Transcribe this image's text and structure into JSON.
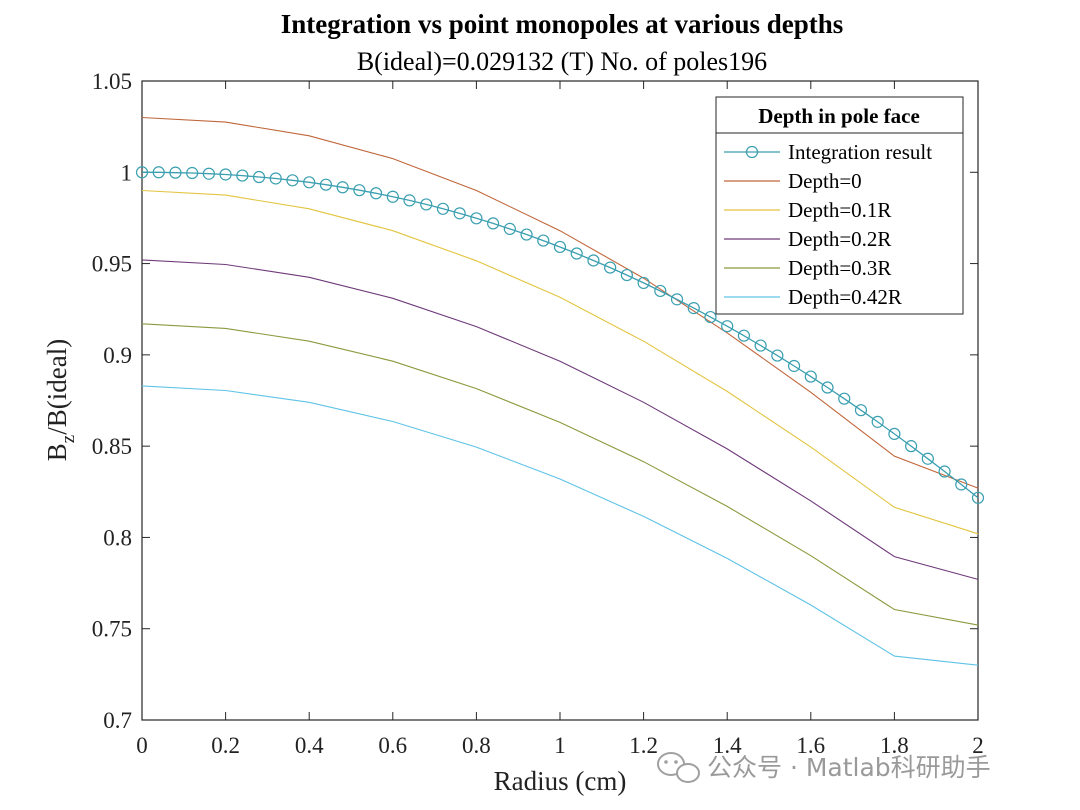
{
  "chart_data": {
    "type": "line",
    "title": "Integration vs point monopoles at various depths",
    "subtitle": "B(ideal)=0.029132 (T) No. of poles196",
    "xlabel": "Radius (cm)",
    "ylabel_main": "B",
    "ylabel_sub": "z",
    "ylabel_rest": "/B(ideal)",
    "xlim": [
      0,
      2
    ],
    "ylim": [
      0.7,
      1.05
    ],
    "xticks": [
      "0",
      "0.2",
      "0.4",
      "0.6",
      "0.8",
      "1",
      "1.2",
      "1.4",
      "1.6",
      "1.8",
      "2"
    ],
    "yticks": [
      "0.7",
      "0.75",
      "0.8",
      "0.85",
      "0.9",
      "0.95",
      "1",
      "1.05"
    ],
    "grid": false,
    "legend_title": "Depth in pole face",
    "legend_position": "top-right",
    "series": [
      {
        "name": "Integration result",
        "color": "#3a9fb0",
        "marker": "circle",
        "x": [
          0.0,
          0.04,
          0.08,
          0.12,
          0.16,
          0.2,
          0.24,
          0.28,
          0.32,
          0.36,
          0.4,
          0.44,
          0.48,
          0.52,
          0.56,
          0.6,
          0.64,
          0.68,
          0.72,
          0.76,
          0.8,
          0.84,
          0.88,
          0.92,
          0.96,
          1.0,
          1.04,
          1.08,
          1.12,
          1.16,
          1.2,
          1.24,
          1.28,
          1.32,
          1.36,
          1.4,
          1.44,
          1.48,
          1.52,
          1.56,
          1.6,
          1.64,
          1.68,
          1.72,
          1.76,
          1.8,
          1.84,
          1.88,
          1.92,
          1.96,
          2.0
        ],
        "y": [
          1.0,
          1.0,
          0.9998,
          0.9996,
          0.9992,
          0.9988,
          0.9982,
          0.9974,
          0.9966,
          0.9956,
          0.9945,
          0.9932,
          0.9918,
          0.9902,
          0.9885,
          0.9866,
          0.9846,
          0.9824,
          0.98,
          0.9775,
          0.9748,
          0.972,
          0.969,
          0.9659,
          0.9626,
          0.9591,
          0.9555,
          0.9517,
          0.9478,
          0.9437,
          0.9394,
          0.935,
          0.9304,
          0.9256,
          0.9207,
          0.9157,
          0.9105,
          0.9051,
          0.8996,
          0.8939,
          0.8881,
          0.8821,
          0.876,
          0.8697,
          0.8633,
          0.8567,
          0.85,
          0.8431,
          0.8361,
          0.829,
          0.8217
        ]
      },
      {
        "name": "Depth=0",
        "color": "#c0663a",
        "x": [
          0.0,
          0.2,
          0.4,
          0.6,
          0.8,
          1.0,
          1.2,
          1.4,
          1.6,
          1.8,
          2.0
        ],
        "y": [
          1.03,
          1.0275,
          1.02,
          1.0075,
          0.99,
          0.968,
          0.942,
          0.912,
          0.8795,
          0.8445,
          0.827
        ]
      },
      {
        "name": "Depth=0.1R",
        "color": "#e3c441",
        "x": [
          0.0,
          0.2,
          0.4,
          0.6,
          0.8,
          1.0,
          1.2,
          1.4,
          1.6,
          1.8,
          2.0
        ],
        "y": [
          0.99,
          0.9875,
          0.98,
          0.968,
          0.9515,
          0.9315,
          0.9075,
          0.88,
          0.8495,
          0.8165,
          0.802
        ]
      },
      {
        "name": "Depth=0.2R",
        "color": "#6f3a7a",
        "x": [
          0.0,
          0.2,
          0.4,
          0.6,
          0.8,
          1.0,
          1.2,
          1.4,
          1.6,
          1.8,
          2.0
        ],
        "y": [
          0.952,
          0.9495,
          0.9425,
          0.931,
          0.9155,
          0.8965,
          0.874,
          0.8485,
          0.82,
          0.7895,
          0.777
        ]
      },
      {
        "name": "Depth=0.3R",
        "color": "#8a9a3e",
        "x": [
          0.0,
          0.2,
          0.4,
          0.6,
          0.8,
          1.0,
          1.2,
          1.4,
          1.6,
          1.8,
          2.0
        ],
        "y": [
          0.917,
          0.9145,
          0.9075,
          0.8965,
          0.8815,
          0.863,
          0.8415,
          0.817,
          0.79,
          0.7605,
          0.752
        ]
      },
      {
        "name": "Depth=0.42R",
        "color": "#5fc3e6",
        "x": [
          0.0,
          0.2,
          0.4,
          0.6,
          0.8,
          1.0,
          1.2,
          1.4,
          1.6,
          1.8,
          2.0
        ],
        "y": [
          0.883,
          0.8805,
          0.874,
          0.8635,
          0.8495,
          0.832,
          0.8115,
          0.7885,
          0.763,
          0.735,
          0.73
        ]
      }
    ]
  },
  "watermark": "公众号 · Matlab科研助手"
}
